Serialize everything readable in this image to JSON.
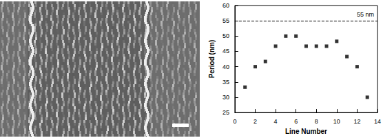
{
  "chart_data": {
    "type": "scatter",
    "x_label": "Line Number",
    "y_label": "Period (nm)",
    "x": [
      1,
      2,
      3,
      4,
      5,
      6,
      7,
      8,
      9,
      10,
      11,
      12,
      13
    ],
    "values": [
      33.3,
      40,
      41.7,
      46.7,
      50,
      50,
      46.7,
      46.7,
      46.7,
      48.3,
      43.3,
      40,
      30
    ],
    "color": "#000000",
    "marker": "square",
    "xlim": [
      0,
      14
    ],
    "xticks": [
      0,
      2,
      4,
      6,
      8,
      10,
      12,
      14
    ],
    "ylim": [
      25,
      60
    ],
    "yticks": [
      25,
      30,
      35,
      40,
      45,
      50,
      55,
      60
    ],
    "grid": false,
    "reference_line": {
      "y": 55,
      "label": "55 nm",
      "line_style": "dashed"
    }
  }
}
